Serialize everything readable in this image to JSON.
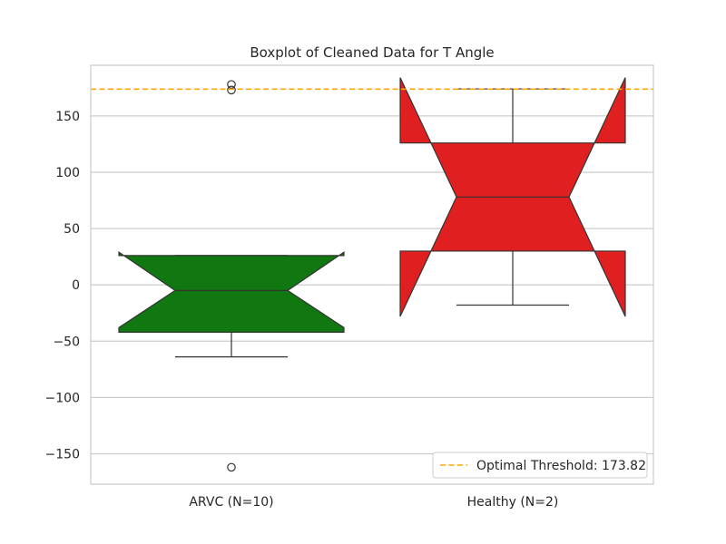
{
  "chart_data": {
    "type": "boxplot",
    "title": "Boxplot of Cleaned Data for T Angle",
    "xlabel": "",
    "ylabel": "",
    "ylim": [
      -177,
      195
    ],
    "yticks": [
      -150,
      -100,
      -50,
      0,
      50,
      100,
      150
    ],
    "grid": "horizontal",
    "legend_position": "lower-right",
    "notched": true,
    "categories": [
      "ARVC (N=10)",
      "Healthy (N=2)"
    ],
    "boxes": [
      {
        "label": "ARVC (N=10)",
        "color": "#117711",
        "q1": -42,
        "median": -5,
        "q3": 26,
        "notch_low": -38,
        "notch_high": 29,
        "whisker_low": -64,
        "whisker_high": 26,
        "outliers": [
          178,
          173,
          -162
        ]
      },
      {
        "label": "Healthy (N=2)",
        "color": "#e02020",
        "q1": 30,
        "median": 78,
        "q3": 126,
        "notch_low": -28,
        "notch_high": 184,
        "whisker_low": -18,
        "whisker_high": 174,
        "outliers": []
      }
    ],
    "reference_lines": [
      {
        "y": 173.82,
        "color": "#ffa500",
        "style": "dashed",
        "label": "Optimal Threshold: 173.82"
      }
    ]
  }
}
